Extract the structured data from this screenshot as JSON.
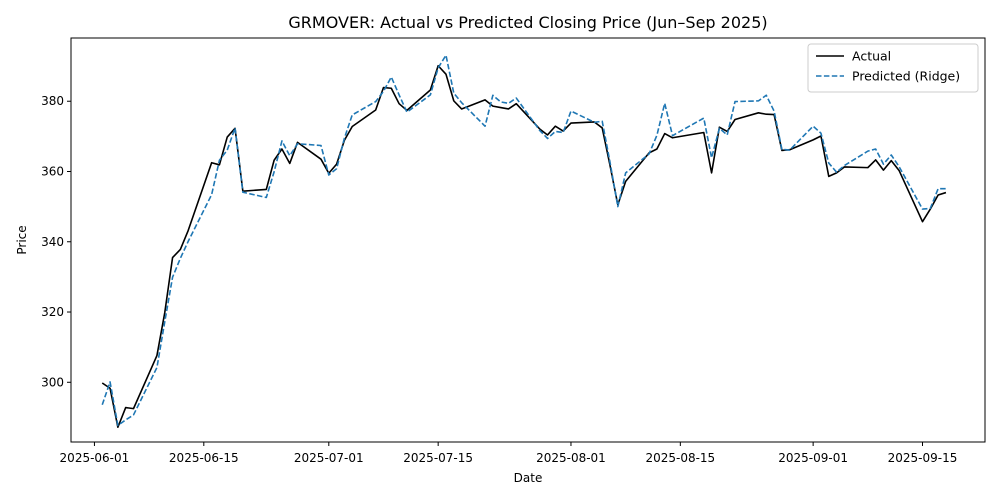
{
  "chart_data": {
    "type": "line",
    "title": "GRMOVER: Actual vs Predicted Closing Price (Jun–Sep 2025)",
    "xlabel": "Date",
    "ylabel": "Price",
    "xlim": [
      "2025-05-29",
      "2025-09-23"
    ],
    "ylim": [
      283,
      398
    ],
    "x_ticks": [
      "2025-06-01",
      "2025-06-15",
      "2025-07-01",
      "2025-07-15",
      "2025-08-01",
      "2025-08-15",
      "2025-09-01",
      "2025-09-15"
    ],
    "y_ticks": [
      300,
      320,
      340,
      360,
      380
    ],
    "grid": false,
    "legend_position": "top-right",
    "series": [
      {
        "name": "Actual",
        "color": "#000000",
        "style": "solid",
        "points": [
          [
            "2025-06-02",
            299.8
          ],
          [
            "2025-06-03",
            298.3
          ],
          [
            "2025-06-04",
            287.2
          ],
          [
            "2025-06-05",
            292.8
          ],
          [
            "2025-06-06",
            292.5
          ],
          [
            "2025-06-09",
            307.6
          ],
          [
            "2025-06-10",
            319.8
          ],
          [
            "2025-06-11",
            335.5
          ],
          [
            "2025-06-12",
            337.8
          ],
          [
            "2025-06-13",
            343.2
          ],
          [
            "2025-06-16",
            362.5
          ],
          [
            "2025-06-17",
            361.9
          ],
          [
            "2025-06-18",
            369.8
          ],
          [
            "2025-06-19",
            372.3
          ],
          [
            "2025-06-20",
            354.4
          ],
          [
            "2025-06-23",
            354.9
          ],
          [
            "2025-06-24",
            363.2
          ],
          [
            "2025-06-25",
            366.4
          ],
          [
            "2025-06-26",
            362.3
          ],
          [
            "2025-06-27",
            368.3
          ],
          [
            "2025-06-30",
            363.5
          ],
          [
            "2025-07-01",
            359.5
          ],
          [
            "2025-07-02",
            362.1
          ],
          [
            "2025-07-03",
            368.9
          ],
          [
            "2025-07-04",
            372.8
          ],
          [
            "2025-07-07",
            377.5
          ],
          [
            "2025-07-08",
            383.9
          ],
          [
            "2025-07-09",
            383.7
          ],
          [
            "2025-07-10",
            379.3
          ],
          [
            "2025-07-11",
            377.4
          ],
          [
            "2025-07-14",
            383.2
          ],
          [
            "2025-07-15",
            390.1
          ],
          [
            "2025-07-16",
            387.7
          ],
          [
            "2025-07-17",
            380.1
          ],
          [
            "2025-07-18",
            377.8
          ],
          [
            "2025-07-21",
            380.4
          ],
          [
            "2025-07-22",
            378.6
          ],
          [
            "2025-07-23",
            378.2
          ],
          [
            "2025-07-24",
            377.8
          ],
          [
            "2025-07-25",
            379.3
          ],
          [
            "2025-07-28",
            372.1
          ],
          [
            "2025-07-29",
            370.4
          ],
          [
            "2025-07-30",
            372.9
          ],
          [
            "2025-07-31",
            371.5
          ],
          [
            "2025-08-01",
            373.8
          ],
          [
            "2025-08-04",
            374.1
          ],
          [
            "2025-08-05",
            372.4
          ],
          [
            "2025-08-06",
            361.7
          ],
          [
            "2025-08-07",
            350.5
          ],
          [
            "2025-08-08",
            357.2
          ],
          [
            "2025-08-11",
            365.3
          ],
          [
            "2025-08-12",
            366.4
          ],
          [
            "2025-08-13",
            370.8
          ],
          [
            "2025-08-14",
            369.6
          ],
          [
            "2025-08-18",
            371.1
          ],
          [
            "2025-08-19",
            359.6
          ],
          [
            "2025-08-20",
            372.6
          ],
          [
            "2025-08-21",
            371.4
          ],
          [
            "2025-08-22",
            374.8
          ],
          [
            "2025-08-25",
            376.7
          ],
          [
            "2025-08-26",
            376.3
          ],
          [
            "2025-08-27",
            376.2
          ],
          [
            "2025-08-28",
            366.0
          ],
          [
            "2025-08-29",
            366.2
          ],
          [
            "2025-09-01",
            369.0
          ],
          [
            "2025-09-02",
            370.1
          ],
          [
            "2025-09-03",
            358.6
          ],
          [
            "2025-09-04",
            359.6
          ],
          [
            "2025-09-05",
            361.3
          ],
          [
            "2025-09-08",
            361.1
          ],
          [
            "2025-09-09",
            363.3
          ],
          [
            "2025-09-10",
            360.4
          ],
          [
            "2025-09-11",
            363.1
          ],
          [
            "2025-09-12",
            360.3
          ],
          [
            "2025-09-15",
            345.7
          ],
          [
            "2025-09-16",
            349.3
          ],
          [
            "2025-09-17",
            353.3
          ],
          [
            "2025-09-18",
            354.0
          ]
        ]
      },
      {
        "name": "Predicted (Ridge)",
        "color": "#1f77b4",
        "style": "dashed",
        "points": [
          [
            "2025-06-02",
            293.6
          ],
          [
            "2025-06-03",
            300.1
          ],
          [
            "2025-06-04",
            287.7
          ],
          [
            "2025-06-05",
            289.3
          ],
          [
            "2025-06-06",
            290.7
          ],
          [
            "2025-06-09",
            304.2
          ],
          [
            "2025-06-10",
            317.2
          ],
          [
            "2025-06-11",
            329.9
          ],
          [
            "2025-06-12",
            335.3
          ],
          [
            "2025-06-13",
            340.1
          ],
          [
            "2025-06-16",
            353.4
          ],
          [
            "2025-06-17",
            363.2
          ],
          [
            "2025-06-18",
            366.1
          ],
          [
            "2025-06-19",
            372.4
          ],
          [
            "2025-06-20",
            354.1
          ],
          [
            "2025-06-23",
            352.6
          ],
          [
            "2025-06-24",
            359.9
          ],
          [
            "2025-06-25",
            368.7
          ],
          [
            "2025-06-26",
            364.5
          ],
          [
            "2025-06-27",
            367.9
          ],
          [
            "2025-06-30",
            367.4
          ],
          [
            "2025-07-01",
            359.0
          ],
          [
            "2025-07-02",
            360.8
          ],
          [
            "2025-07-03",
            369.5
          ],
          [
            "2025-07-04",
            376.1
          ],
          [
            "2025-07-07",
            379.9
          ],
          [
            "2025-07-08",
            382.8
          ],
          [
            "2025-07-09",
            386.9
          ],
          [
            "2025-07-10",
            381.8
          ],
          [
            "2025-07-11",
            376.9
          ],
          [
            "2025-07-14",
            381.8
          ],
          [
            "2025-07-15",
            389.5
          ],
          [
            "2025-07-16",
            393.1
          ],
          [
            "2025-07-17",
            382.3
          ],
          [
            "2025-07-18",
            379.6
          ],
          [
            "2025-07-21",
            372.9
          ],
          [
            "2025-07-22",
            381.7
          ],
          [
            "2025-07-23",
            379.8
          ],
          [
            "2025-07-24",
            379.4
          ],
          [
            "2025-07-25",
            380.9
          ],
          [
            "2025-07-28",
            371.7
          ],
          [
            "2025-07-29",
            369.4
          ],
          [
            "2025-07-30",
            371.4
          ],
          [
            "2025-07-31",
            371.1
          ],
          [
            "2025-08-01",
            377.2
          ],
          [
            "2025-08-04",
            374.0
          ],
          [
            "2025-08-05",
            374.3
          ],
          [
            "2025-08-06",
            362.6
          ],
          [
            "2025-08-07",
            350.0
          ],
          [
            "2025-08-08",
            359.6
          ],
          [
            "2025-08-11",
            365.0
          ],
          [
            "2025-08-12",
            370.3
          ],
          [
            "2025-08-13",
            379.4
          ],
          [
            "2025-08-14",
            370.2
          ],
          [
            "2025-08-18",
            375.2
          ],
          [
            "2025-08-19",
            363.9
          ],
          [
            "2025-08-20",
            372.3
          ],
          [
            "2025-08-21",
            370.4
          ],
          [
            "2025-08-22",
            379.9
          ],
          [
            "2025-08-25",
            380.1
          ],
          [
            "2025-08-26",
            381.7
          ],
          [
            "2025-08-27",
            377.2
          ],
          [
            "2025-08-28",
            366.3
          ],
          [
            "2025-08-29",
            366.1
          ],
          [
            "2025-09-01",
            372.9
          ],
          [
            "2025-09-02",
            370.9
          ],
          [
            "2025-09-03",
            362.4
          ],
          [
            "2025-09-04",
            359.8
          ],
          [
            "2025-09-05",
            361.7
          ],
          [
            "2025-09-08",
            365.8
          ],
          [
            "2025-09-09",
            366.4
          ],
          [
            "2025-09-10",
            362.1
          ],
          [
            "2025-09-11",
            364.7
          ],
          [
            "2025-09-12",
            361.4
          ],
          [
            "2025-09-15",
            349.3
          ],
          [
            "2025-09-16",
            349.5
          ],
          [
            "2025-09-17",
            355.1
          ],
          [
            "2025-09-18",
            355.1
          ]
        ]
      }
    ]
  }
}
